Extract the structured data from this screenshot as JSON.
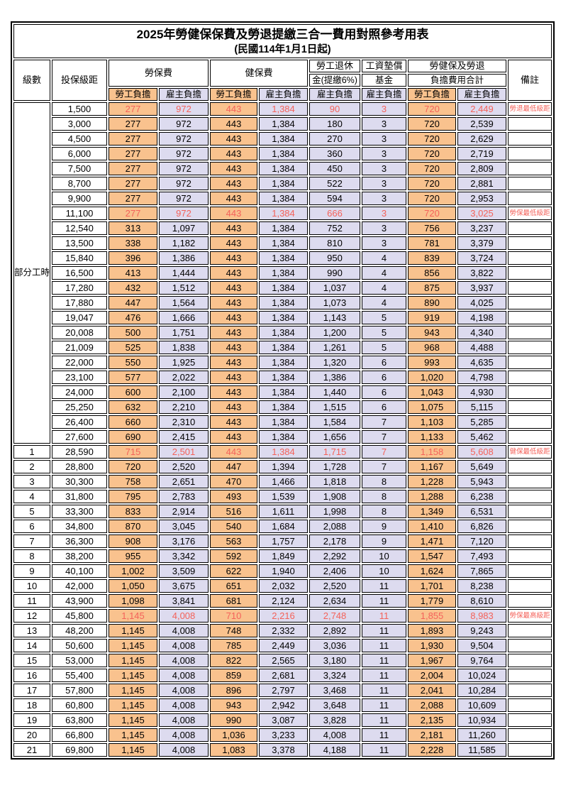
{
  "title": "2025年勞健保保費及勞退提繳三合一費用對照參考用表",
  "subtitle": "(民國114年1月1日起)",
  "columns": {
    "level": "級數",
    "salary": "投保級距",
    "labor_insurance": "勞保費",
    "health_insurance": "健保費",
    "pension_line1": "勞工退休",
    "pension_line2": "金(提繳6%)",
    "wage_fund_line1": "工資墊償",
    "wage_fund_line2": "基金",
    "total_line1": "勞健保及勞退",
    "total_line2": "負擔費用合計",
    "remark": "備註",
    "employee_share": "勞工負擔",
    "employer_share": "雇主負擔"
  },
  "part_time": {
    "label": "部分工時",
    "rowspan": 23
  },
  "colors": {
    "employee_bg": "#f9c28e",
    "employer_bg": "#dddbef",
    "highlight_red": "#f4625a",
    "border": "#000000"
  },
  "rows": [
    {
      "lv": null,
      "salary": "1,500",
      "v": [
        "277",
        "972",
        "443",
        "1,384",
        "90",
        "3",
        "720",
        "2,449"
      ],
      "note": "勞退最低級距",
      "hl": true
    },
    {
      "lv": null,
      "salary": "3,000",
      "v": [
        "277",
        "972",
        "443",
        "1,384",
        "180",
        "3",
        "720",
        "2,539"
      ],
      "note": "",
      "hl": false
    },
    {
      "lv": null,
      "salary": "4,500",
      "v": [
        "277",
        "972",
        "443",
        "1,384",
        "270",
        "3",
        "720",
        "2,629"
      ],
      "note": "",
      "hl": false
    },
    {
      "lv": null,
      "salary": "6,000",
      "v": [
        "277",
        "972",
        "443",
        "1,384",
        "360",
        "3",
        "720",
        "2,719"
      ],
      "note": "",
      "hl": false
    },
    {
      "lv": null,
      "salary": "7,500",
      "v": [
        "277",
        "972",
        "443",
        "1,384",
        "450",
        "3",
        "720",
        "2,809"
      ],
      "note": "",
      "hl": false
    },
    {
      "lv": null,
      "salary": "8,700",
      "v": [
        "277",
        "972",
        "443",
        "1,384",
        "522",
        "3",
        "720",
        "2,881"
      ],
      "note": "",
      "hl": false
    },
    {
      "lv": null,
      "salary": "9,900",
      "v": [
        "277",
        "972",
        "443",
        "1,384",
        "594",
        "3",
        "720",
        "2,953"
      ],
      "note": "",
      "hl": false
    },
    {
      "lv": null,
      "salary": "11,100",
      "v": [
        "277",
        "972",
        "443",
        "1,384",
        "666",
        "3",
        "720",
        "3,025"
      ],
      "note": "勞保最低級距",
      "hl": true
    },
    {
      "lv": null,
      "salary": "12,540",
      "v": [
        "313",
        "1,097",
        "443",
        "1,384",
        "752",
        "3",
        "756",
        "3,237"
      ],
      "note": "",
      "hl": false
    },
    {
      "lv": null,
      "salary": "13,500",
      "v": [
        "338",
        "1,182",
        "443",
        "1,384",
        "810",
        "3",
        "781",
        "3,379"
      ],
      "note": "",
      "hl": false
    },
    {
      "lv": null,
      "salary": "15,840",
      "v": [
        "396",
        "1,386",
        "443",
        "1,384",
        "950",
        "4",
        "839",
        "3,724"
      ],
      "note": "",
      "hl": false
    },
    {
      "lv": null,
      "salary": "16,500",
      "v": [
        "413",
        "1,444",
        "443",
        "1,384",
        "990",
        "4",
        "856",
        "3,822"
      ],
      "note": "",
      "hl": false
    },
    {
      "lv": null,
      "salary": "17,280",
      "v": [
        "432",
        "1,512",
        "443",
        "1,384",
        "1,037",
        "4",
        "875",
        "3,937"
      ],
      "note": "",
      "hl": false
    },
    {
      "lv": null,
      "salary": "17,880",
      "v": [
        "447",
        "1,564",
        "443",
        "1,384",
        "1,073",
        "4",
        "890",
        "4,025"
      ],
      "note": "",
      "hl": false
    },
    {
      "lv": null,
      "salary": "19,047",
      "v": [
        "476",
        "1,666",
        "443",
        "1,384",
        "1,143",
        "5",
        "919",
        "4,198"
      ],
      "note": "",
      "hl": false
    },
    {
      "lv": null,
      "salary": "20,008",
      "v": [
        "500",
        "1,751",
        "443",
        "1,384",
        "1,200",
        "5",
        "943",
        "4,340"
      ],
      "note": "",
      "hl": false
    },
    {
      "lv": null,
      "salary": "21,009",
      "v": [
        "525",
        "1,838",
        "443",
        "1,384",
        "1,261",
        "5",
        "968",
        "4,488"
      ],
      "note": "",
      "hl": false
    },
    {
      "lv": null,
      "salary": "22,000",
      "v": [
        "550",
        "1,925",
        "443",
        "1,384",
        "1,320",
        "6",
        "993",
        "4,635"
      ],
      "note": "",
      "hl": false
    },
    {
      "lv": null,
      "salary": "23,100",
      "v": [
        "577",
        "2,022",
        "443",
        "1,384",
        "1,386",
        "6",
        "1,020",
        "4,798"
      ],
      "note": "",
      "hl": false
    },
    {
      "lv": null,
      "salary": "24,000",
      "v": [
        "600",
        "2,100",
        "443",
        "1,384",
        "1,440",
        "6",
        "1,043",
        "4,930"
      ],
      "note": "",
      "hl": false
    },
    {
      "lv": null,
      "salary": "25,250",
      "v": [
        "632",
        "2,210",
        "443",
        "1,384",
        "1,515",
        "6",
        "1,075",
        "5,115"
      ],
      "note": "",
      "hl": false
    },
    {
      "lv": null,
      "salary": "26,400",
      "v": [
        "660",
        "2,310",
        "443",
        "1,384",
        "1,584",
        "7",
        "1,103",
        "5,285"
      ],
      "note": "",
      "hl": false
    },
    {
      "lv": null,
      "salary": "27,600",
      "v": [
        "690",
        "2,415",
        "443",
        "1,384",
        "1,656",
        "7",
        "1,133",
        "5,462"
      ],
      "note": "",
      "hl": false
    },
    {
      "lv": "1",
      "salary": "28,590",
      "v": [
        "715",
        "2,501",
        "443",
        "1,384",
        "1,715",
        "7",
        "1,158",
        "5,608"
      ],
      "note": "健保最低級距",
      "hl": true
    },
    {
      "lv": "2",
      "salary": "28,800",
      "v": [
        "720",
        "2,520",
        "447",
        "1,394",
        "1,728",
        "7",
        "1,167",
        "5,649"
      ],
      "note": "",
      "hl": false
    },
    {
      "lv": "3",
      "salary": "30,300",
      "v": [
        "758",
        "2,651",
        "470",
        "1,466",
        "1,818",
        "8",
        "1,228",
        "5,943"
      ],
      "note": "",
      "hl": false
    },
    {
      "lv": "4",
      "salary": "31,800",
      "v": [
        "795",
        "2,783",
        "493",
        "1,539",
        "1,908",
        "8",
        "1,288",
        "6,238"
      ],
      "note": "",
      "hl": false
    },
    {
      "lv": "5",
      "salary": "33,300",
      "v": [
        "833",
        "2,914",
        "516",
        "1,611",
        "1,998",
        "8",
        "1,349",
        "6,531"
      ],
      "note": "",
      "hl": false
    },
    {
      "lv": "6",
      "salary": "34,800",
      "v": [
        "870",
        "3,045",
        "540",
        "1,684",
        "2,088",
        "9",
        "1,410",
        "6,826"
      ],
      "note": "",
      "hl": false
    },
    {
      "lv": "7",
      "salary": "36,300",
      "v": [
        "908",
        "3,176",
        "563",
        "1,757",
        "2,178",
        "9",
        "1,471",
        "7,120"
      ],
      "note": "",
      "hl": false
    },
    {
      "lv": "8",
      "salary": "38,200",
      "v": [
        "955",
        "3,342",
        "592",
        "1,849",
        "2,292",
        "10",
        "1,547",
        "7,493"
      ],
      "note": "",
      "hl": false
    },
    {
      "lv": "9",
      "salary": "40,100",
      "v": [
        "1,002",
        "3,509",
        "622",
        "1,940",
        "2,406",
        "10",
        "1,624",
        "7,865"
      ],
      "note": "",
      "hl": false
    },
    {
      "lv": "10",
      "salary": "42,000",
      "v": [
        "1,050",
        "3,675",
        "651",
        "2,032",
        "2,520",
        "11",
        "1,701",
        "8,238"
      ],
      "note": "",
      "hl": false
    },
    {
      "lv": "11",
      "salary": "43,900",
      "v": [
        "1,098",
        "3,841",
        "681",
        "2,124",
        "2,634",
        "11",
        "1,779",
        "8,610"
      ],
      "note": "",
      "hl": false
    },
    {
      "lv": "12",
      "salary": "45,800",
      "v": [
        "1,145",
        "4,008",
        "710",
        "2,216",
        "2,748",
        "11",
        "1,855",
        "8,983"
      ],
      "note": "勞保最高級距",
      "hl": true
    },
    {
      "lv": "13",
      "salary": "48,200",
      "v": [
        "1,145",
        "4,008",
        "748",
        "2,332",
        "2,892",
        "11",
        "1,893",
        "9,243"
      ],
      "note": "",
      "hl": false
    },
    {
      "lv": "14",
      "salary": "50,600",
      "v": [
        "1,145",
        "4,008",
        "785",
        "2,449",
        "3,036",
        "11",
        "1,930",
        "9,504"
      ],
      "note": "",
      "hl": false
    },
    {
      "lv": "15",
      "salary": "53,000",
      "v": [
        "1,145",
        "4,008",
        "822",
        "2,565",
        "3,180",
        "11",
        "1,967",
        "9,764"
      ],
      "note": "",
      "hl": false
    },
    {
      "lv": "16",
      "salary": "55,400",
      "v": [
        "1,145",
        "4,008",
        "859",
        "2,681",
        "3,324",
        "11",
        "2,004",
        "10,024"
      ],
      "note": "",
      "hl": false
    },
    {
      "lv": "17",
      "salary": "57,800",
      "v": [
        "1,145",
        "4,008",
        "896",
        "2,797",
        "3,468",
        "11",
        "2,041",
        "10,284"
      ],
      "note": "",
      "hl": false
    },
    {
      "lv": "18",
      "salary": "60,800",
      "v": [
        "1,145",
        "4,008",
        "943",
        "2,942",
        "3,648",
        "11",
        "2,088",
        "10,609"
      ],
      "note": "",
      "hl": false
    },
    {
      "lv": "19",
      "salary": "63,800",
      "v": [
        "1,145",
        "4,008",
        "990",
        "3,087",
        "3,828",
        "11",
        "2,135",
        "10,934"
      ],
      "note": "",
      "hl": false
    },
    {
      "lv": "20",
      "salary": "66,800",
      "v": [
        "1,145",
        "4,008",
        "1,036",
        "3,233",
        "4,008",
        "11",
        "2,181",
        "11,260"
      ],
      "note": "",
      "hl": false
    },
    {
      "lv": "21",
      "salary": "69,800",
      "v": [
        "1,145",
        "4,008",
        "1,083",
        "3,378",
        "4,188",
        "11",
        "2,228",
        "11,585"
      ],
      "note": "",
      "hl": false
    }
  ]
}
